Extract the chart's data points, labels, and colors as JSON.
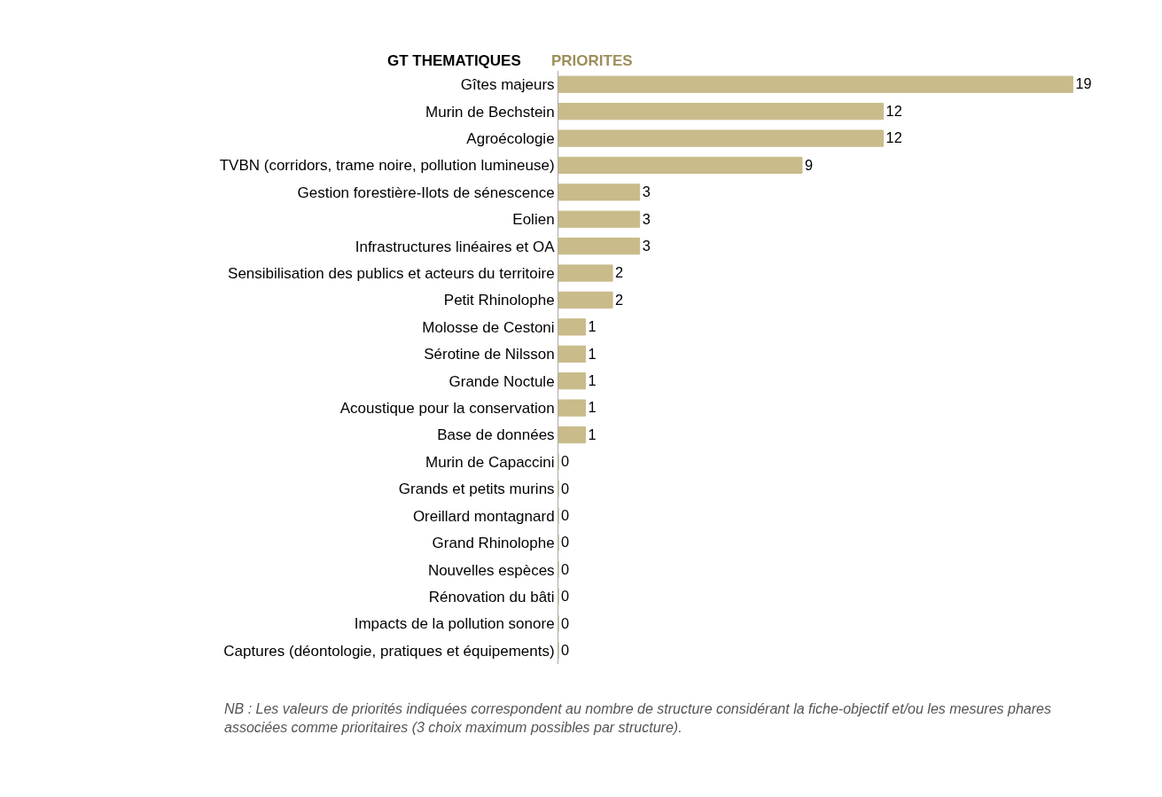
{
  "chart_data": {
    "type": "bar",
    "orientation": "horizontal",
    "ylabel": "GT THEMATIQUES",
    "categories": [
      "Gîtes majeurs",
      "Murin de Bechstein",
      "Agroécologie",
      "TVBN (corridors, trame noire, pollution lumineuse)",
      "Gestion forestière-Ilots de sénescence",
      "Eolien",
      "Infrastructures linéaires et OA",
      "Sensibilisation des publics et acteurs du territoire",
      "Petit Rhinolophe",
      "Molosse de Cestoni",
      "Sérotine de Nilsson",
      "Grande Noctule",
      "Acoustique pour la conservation",
      "Base de données",
      "Murin de Capaccini",
      "Grands et petits murins",
      "Oreillard montagnard",
      "Grand Rhinolophe",
      "Nouvelles espèces",
      "Rénovation du bâti",
      "Impacts de la pollution sonore",
      "Captures (déontologie, pratiques et équipements)"
    ],
    "series": [
      {
        "name": "PRIORITES",
        "color": "#c9bb8a",
        "values": [
          19,
          12,
          12,
          9,
          3,
          3,
          3,
          2,
          2,
          1,
          1,
          1,
          1,
          1,
          0,
          0,
          0,
          0,
          0,
          0,
          0,
          0
        ]
      }
    ],
    "data_labels": true,
    "annotations": [
      "NB : Les valeurs de priorités indiquées correspondent au nombre de structure considérant la fiche-objectif et/ou les mesures phares associées comme prioritaires (3 choix maximum possibles par structure)."
    ]
  }
}
